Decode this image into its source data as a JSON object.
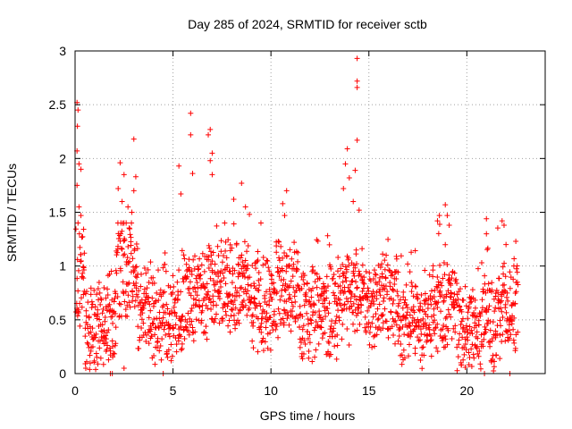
{
  "chart_data": {
    "type": "scatter",
    "title": "Day 285 of 2024, SRMTID for receiver sctb",
    "xlabel": "GPS time / hours",
    "ylabel": "SRMTID / TECUs",
    "xlim": [
      0,
      24
    ],
    "ylim": [
      0,
      3
    ],
    "xticks": [
      0,
      5,
      10,
      15,
      20
    ],
    "xtick_labels": [
      "0",
      "5",
      "10",
      "15",
      "20"
    ],
    "yticks": [
      0,
      0.5,
      1,
      1.5,
      2,
      2.5,
      3
    ],
    "ytick_labels": [
      "0",
      "0.5",
      "1",
      "1.5",
      "2",
      "2.5",
      "3"
    ],
    "grid": true,
    "marker": "plus",
    "color": "#ff0000",
    "series": [
      {
        "name": "SRMTID",
        "x_start": 0.05,
        "x_end": 22.6,
        "n_points": 1800,
        "envelope_note": "Dense cloud of points mostly between 0.1 and 1.0 TECU; excursions listed in 'highlights'.",
        "highlights": [
          {
            "x": 0.1,
            "y": 2.52
          },
          {
            "x": 0.15,
            "y": 2.45
          },
          {
            "x": 0.12,
            "y": 2.3
          },
          {
            "x": 0.1,
            "y": 2.07
          },
          {
            "x": 0.2,
            "y": 1.95
          },
          {
            "x": 0.3,
            "y": 1.9
          },
          {
            "x": 0.1,
            "y": 1.75
          },
          {
            "x": 0.2,
            "y": 1.55
          },
          {
            "x": 0.3,
            "y": 1.47
          },
          {
            "x": 2.3,
            "y": 1.96
          },
          {
            "x": 2.5,
            "y": 1.85
          },
          {
            "x": 2.2,
            "y": 1.72
          },
          {
            "x": 2.4,
            "y": 1.6
          },
          {
            "x": 2.7,
            "y": 1.55
          },
          {
            "x": 3.0,
            "y": 2.18
          },
          {
            "x": 3.1,
            "y": 1.83
          },
          {
            "x": 3.0,
            "y": 1.7
          },
          {
            "x": 2.9,
            "y": 1.5
          },
          {
            "x": 5.3,
            "y": 1.93
          },
          {
            "x": 5.4,
            "y": 1.67
          },
          {
            "x": 5.9,
            "y": 2.42
          },
          {
            "x": 5.9,
            "y": 2.22
          },
          {
            "x": 6.0,
            "y": 1.86
          },
          {
            "x": 6.9,
            "y": 2.27
          },
          {
            "x": 6.8,
            "y": 2.22
          },
          {
            "x": 7.0,
            "y": 2.05
          },
          {
            "x": 6.9,
            "y": 1.98
          },
          {
            "x": 7.0,
            "y": 1.85
          },
          {
            "x": 8.1,
            "y": 1.62
          },
          {
            "x": 8.5,
            "y": 1.77
          },
          {
            "x": 8.7,
            "y": 1.55
          },
          {
            "x": 8.9,
            "y": 1.48
          },
          {
            "x": 10.8,
            "y": 1.7
          },
          {
            "x": 10.6,
            "y": 1.58
          },
          {
            "x": 10.7,
            "y": 1.47
          },
          {
            "x": 13.9,
            "y": 2.09
          },
          {
            "x": 13.8,
            "y": 1.95
          },
          {
            "x": 13.7,
            "y": 1.72
          },
          {
            "x": 14.0,
            "y": 1.82
          },
          {
            "x": 14.4,
            "y": 2.93
          },
          {
            "x": 14.4,
            "y": 2.72
          },
          {
            "x": 14.4,
            "y": 2.66
          },
          {
            "x": 14.4,
            "y": 2.17
          },
          {
            "x": 14.3,
            "y": 1.89
          },
          {
            "x": 14.2,
            "y": 1.6
          },
          {
            "x": 14.5,
            "y": 1.52
          },
          {
            "x": 18.6,
            "y": 1.47
          },
          {
            "x": 18.5,
            "y": 1.42
          },
          {
            "x": 18.9,
            "y": 1.57
          },
          {
            "x": 19.0,
            "y": 1.47
          },
          {
            "x": 19.1,
            "y": 1.38
          },
          {
            "x": 21.0,
            "y": 1.44
          },
          {
            "x": 21.0,
            "y": 1.3
          },
          {
            "x": 21.8,
            "y": 1.42
          },
          {
            "x": 21.9,
            "y": 1.38
          },
          {
            "x": 22.0,
            "y": 1.2
          },
          {
            "x": 22.5,
            "y": 1.23
          },
          {
            "x": 22.4,
            "y": 1.0
          },
          {
            "x": 1.8,
            "y": 0.0
          },
          {
            "x": 1.9,
            "y": 0.0
          },
          {
            "x": 2.5,
            "y": 0.05
          },
          {
            "x": 4.5,
            "y": 0.0
          },
          {
            "x": 20.9,
            "y": 0.0
          },
          {
            "x": 22.2,
            "y": 0.0
          }
        ]
      }
    ]
  }
}
